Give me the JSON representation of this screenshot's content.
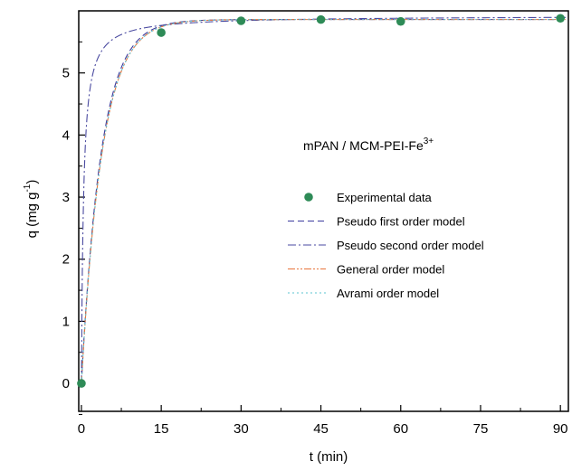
{
  "chart_data": {
    "type": "scatter",
    "annotation": {
      "text": "mPAN / MCM-PEI-Fe",
      "superscript": "3+"
    },
    "xlabel": "t (min)",
    "ylabel": {
      "base": "q  (mg g",
      "superscript": "-1",
      "close": ")"
    },
    "xlim": [
      -0.5,
      91.5
    ],
    "ylim": [
      -0.45,
      6.0
    ],
    "xticks": [
      0,
      15,
      30,
      45,
      60,
      75,
      90
    ],
    "yticks": [
      0,
      1,
      2,
      3,
      4,
      5
    ],
    "grid": false,
    "legend_position": "center-right",
    "series": [
      {
        "name": "Experimental data",
        "style": "marker",
        "color": "#2e8b57",
        "x": [
          0,
          15,
          30,
          45,
          60,
          90
        ],
        "y": [
          0.0,
          5.65,
          5.84,
          5.86,
          5.83,
          5.88
        ]
      },
      {
        "name": "Pseudo first order model",
        "style": "dashed",
        "color": "#3b3b9e",
        "qe": 5.86,
        "k1": 0.27
      },
      {
        "name": "Pseudo second order model",
        "style": "dashdot",
        "color": "#4a4aa0",
        "qe": 5.92,
        "k2": 0.42
      },
      {
        "name": "General order model",
        "style": "dashdotdot",
        "color": "#e8743b",
        "qe": 5.86,
        "k1": 0.26
      },
      {
        "name": "Avrami order model",
        "style": "dotted",
        "color": "#5bc4d0",
        "qe": 5.86,
        "k1": 0.26
      }
    ]
  }
}
